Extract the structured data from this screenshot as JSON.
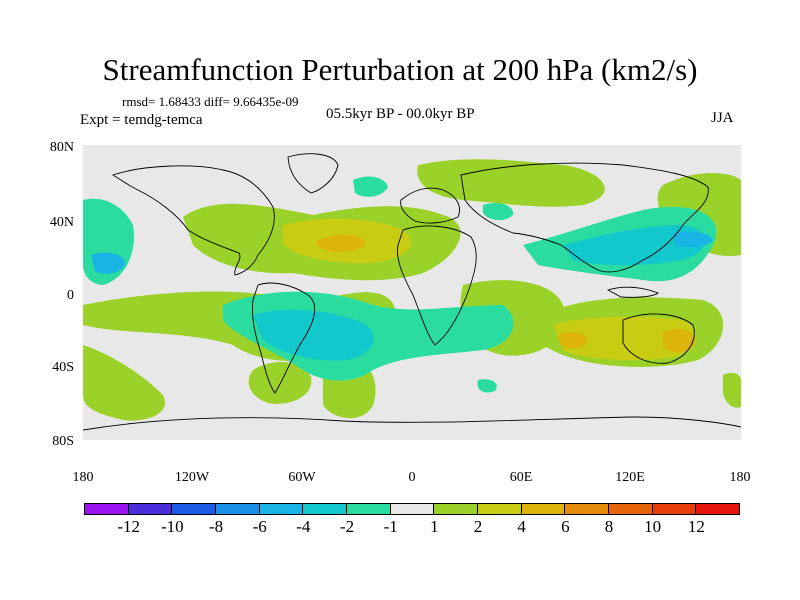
{
  "title": "Streamfunction Perturbation at 200 hPa (km2/s)",
  "stats": "rmsd= 1.68433  diff= 9.66435e-09",
  "experiment": "Expt = temdg-temca",
  "period": "05.5kyr BP - 00.0kyr BP",
  "season": "JJA",
  "lat_labels": [
    "80N",
    "40N",
    "0",
    "40S",
    "80S"
  ],
  "lon_labels": [
    "180",
    "120W",
    "60W",
    "0",
    "60E",
    "120E",
    "180"
  ],
  "colorbar": {
    "labels": [
      "-12",
      "-10",
      "-8",
      "-6",
      "-4",
      "-2",
      "-1",
      "1",
      "2",
      "4",
      "6",
      "8",
      "10",
      "12"
    ],
    "colors": [
      "#9a14f0",
      "#4b2ddc",
      "#1f5ae6",
      "#1c90e6",
      "#18b4e6",
      "#12c8cc",
      "#2bdca0",
      "#e8e8e8",
      "#9bd22a",
      "#c8cd14",
      "#dcb40a",
      "#e68c0a",
      "#e6640a",
      "#e63c0a",
      "#e6140a"
    ]
  },
  "map_colors": {
    "neutral": "#e8e8e8",
    "pos1": "#9bd22a",
    "pos2": "#c8cd14",
    "pos3": "#dcb40a",
    "neg1": "#2bdca0",
    "neg2": "#12c8cc",
    "neg3": "#18b4e6",
    "coast": "#000000"
  }
}
